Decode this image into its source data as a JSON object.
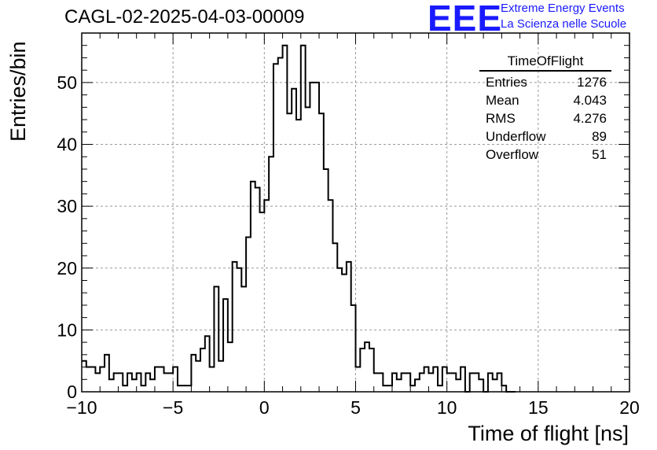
{
  "title": "CAGL-02-2025-04-03-00009",
  "logo": {
    "text": "EEE",
    "line1": "Extreme Energy Events",
    "line2": "La Scienza nelle Scuole",
    "color": "#1a1aff"
  },
  "stats_box": {
    "name": "TimeOfFlight",
    "rows": [
      {
        "label": "Entries",
        "value": "1276"
      },
      {
        "label": "Mean",
        "value": "4.043"
      },
      {
        "label": "RMS",
        "value": "4.276"
      },
      {
        "label": "Underflow",
        "value": "89"
      },
      {
        "label": "Overflow",
        "value": "51"
      }
    ]
  },
  "chart_data": {
    "type": "histogram",
    "title": "CAGL-02-2025-04-03-00009",
    "xlabel": "Time of flight [ns]",
    "ylabel": "Entries/bin",
    "xlim": [
      -10,
      20
    ],
    "ylim": [
      0,
      58
    ],
    "bin_width": 0.25,
    "grid": true,
    "xticks": [
      -10,
      -5,
      0,
      5,
      10,
      15,
      20
    ],
    "xtick_labels": [
      "−10",
      "−5",
      "0",
      "5",
      "10",
      "15",
      "20"
    ],
    "yticks": [
      0,
      10,
      20,
      30,
      40,
      50
    ],
    "yticklabels": [
      "0",
      "10",
      "20",
      "30",
      "40",
      "50"
    ],
    "counts": [
      5,
      4,
      4,
      3,
      4,
      6,
      2,
      3,
      3,
      1,
      3,
      2,
      3,
      1,
      3,
      2,
      4,
      4,
      3,
      3,
      4,
      1,
      1,
      1,
      6,
      5,
      7,
      9,
      4,
      17,
      5,
      15,
      8,
      21,
      20,
      17,
      25,
      34,
      33,
      29,
      31,
      38,
      53,
      54,
      56,
      45,
      49,
      44,
      56,
      46,
      50,
      50,
      45,
      36,
      31,
      24,
      20,
      19,
      21,
      14,
      4,
      7,
      8,
      7,
      3,
      3,
      1,
      1,
      3,
      2,
      3,
      3,
      1,
      2,
      3,
      4,
      3,
      4,
      1,
      4,
      3,
      3,
      2,
      4,
      0,
      3,
      3,
      2,
      0,
      3,
      2,
      3,
      1,
      0,
      0
    ],
    "line_color": "#000000"
  }
}
